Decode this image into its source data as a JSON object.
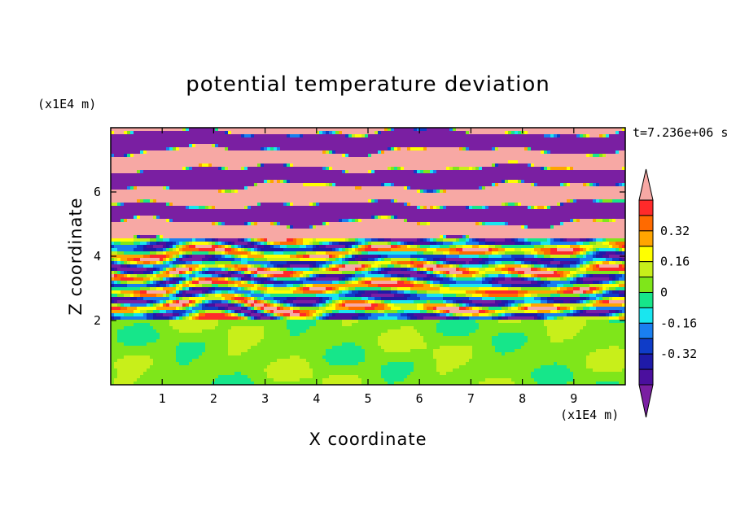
{
  "chart_data": {
    "type": "heatmap",
    "title": "potential temperature deviation",
    "xlabel": "X coordinate",
    "ylabel": "Z coordinate",
    "x_unit": "(x1E4 m)",
    "y_unit": "(x1E4 m)",
    "time_label": "t=7.236e+06 s",
    "xlim": [
      0,
      10
    ],
    "ylim": [
      0,
      8
    ],
    "x_ticks": [
      "1",
      "2",
      "3",
      "4",
      "5",
      "6",
      "7",
      "8",
      "9"
    ],
    "y_ticks": [
      "2",
      "4",
      "6"
    ],
    "colorbar": {
      "levels": [
        -0.48,
        -0.4,
        -0.32,
        -0.24,
        -0.16,
        -0.08,
        0,
        0.08,
        0.16,
        0.24,
        0.32,
        0.4,
        0.48
      ],
      "tick_labels": [
        "0.32",
        "0.16",
        "0",
        "-0.16",
        "-0.32"
      ],
      "colors": [
        "#7a1fa2",
        "#4b0f9e",
        "#1f1aa8",
        "#0f3cc8",
        "#1a7ff0",
        "#19e6ef",
        "#16e68a",
        "#7fe61a",
        "#c8ef1a",
        "#ffff00",
        "#ffa500",
        "#ff6a00",
        "#ff2a2a",
        "#f7a8a4"
      ],
      "extend": "both"
    },
    "regions": {
      "lower_layer_z_range": [
        0,
        2
      ],
      "lower_layer_dominant_values": [
        0,
        0.08
      ],
      "mixed_layer_z_range": [
        2,
        4.5
      ],
      "upper_layer_z_range": [
        4.5,
        8
      ],
      "upper_layer_dominant_values": [
        -0.48,
        0.48
      ]
    }
  }
}
